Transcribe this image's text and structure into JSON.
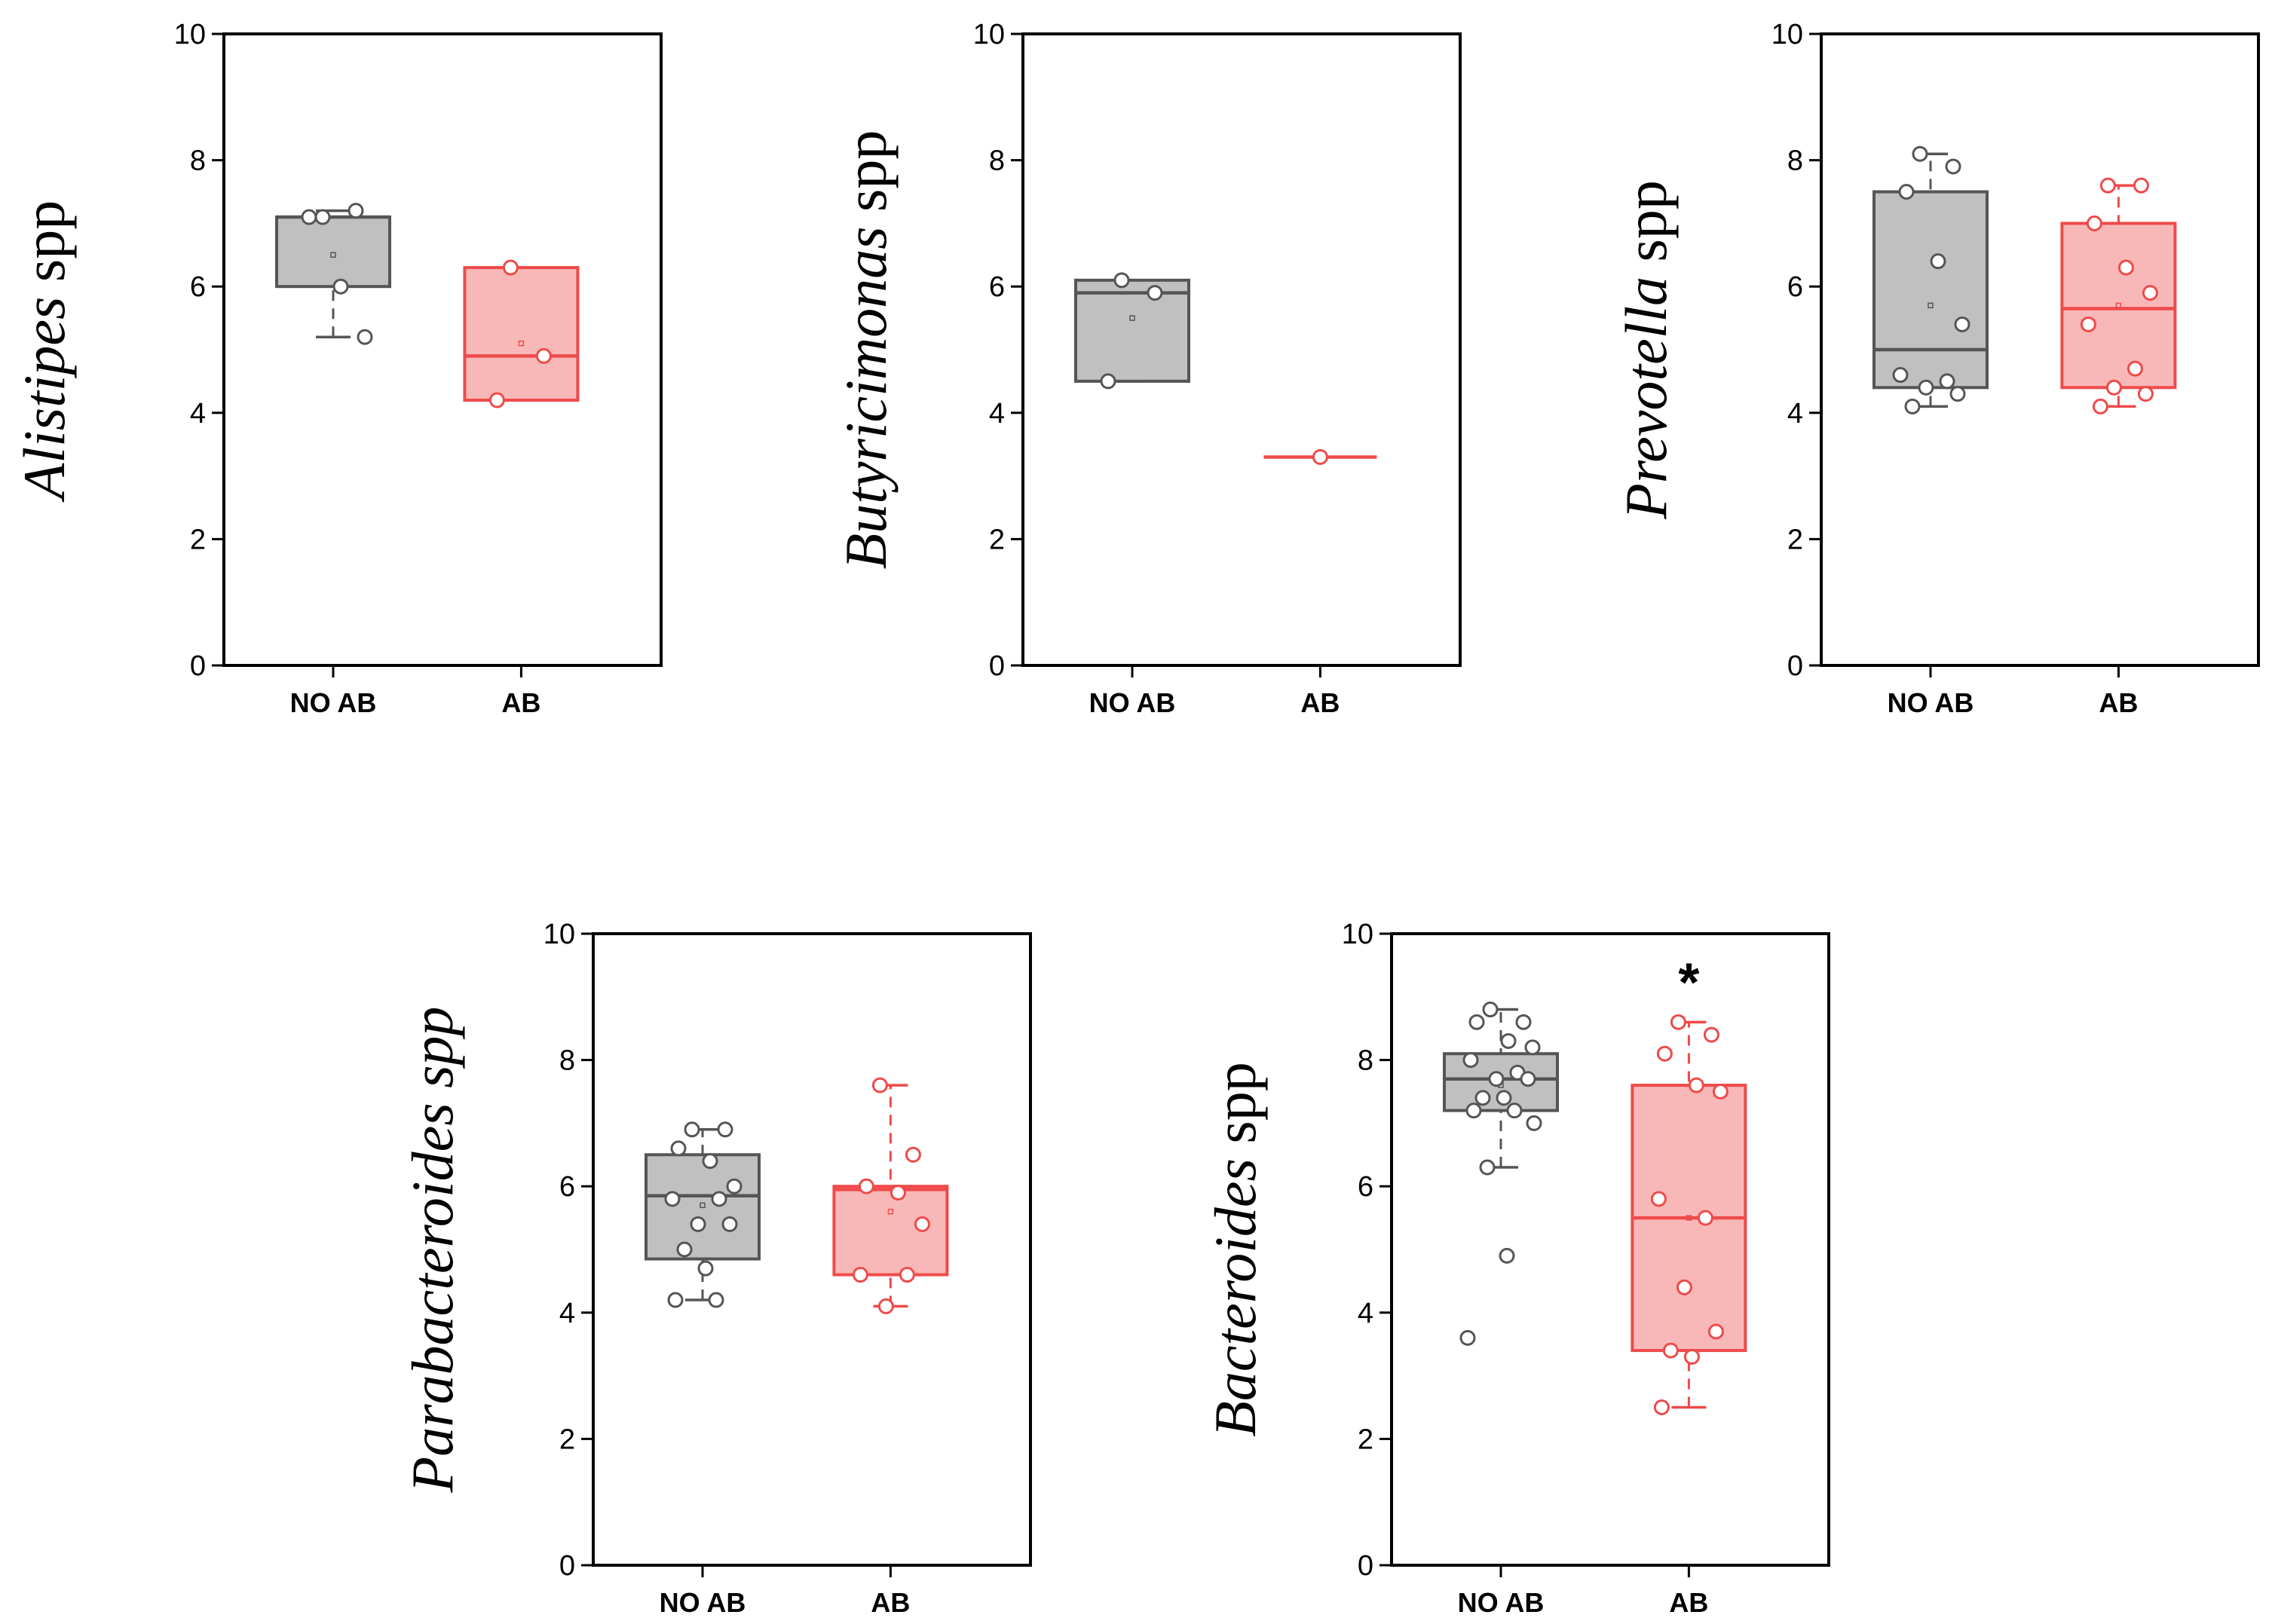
{
  "chart_data": [
    {
      "type": "box",
      "ylabel": {
        "genus": "Alistipes",
        "suffix": " spp"
      },
      "ylim": [
        0,
        10
      ],
      "yticks": [
        0,
        2,
        4,
        6,
        8,
        10
      ],
      "categories": [
        "NO AB",
        "AB"
      ],
      "significance": "",
      "series": [
        {
          "name": "NO AB",
          "color": "#555555",
          "fill": "#c0c0c0",
          "q1": 6.0,
          "median": 7.1,
          "q3": 7.1,
          "mean": 6.5,
          "whisker_low": 5.2,
          "whisker_high": 7.2,
          "points": [
            7.1,
            7.2,
            7.1,
            6.0,
            5.2
          ]
        },
        {
          "name": "AB",
          "color": "#ef4a4a",
          "fill": "#f9b8b8",
          "q1": 4.2,
          "median": 4.9,
          "q3": 6.3,
          "mean": 5.1,
          "whisker_low": 4.2,
          "whisker_high": 6.3,
          "points": [
            6.3,
            4.9,
            4.2
          ]
        }
      ]
    },
    {
      "type": "box",
      "ylabel": {
        "genus": "Butyricimonas",
        "suffix": " spp"
      },
      "ylim": [
        0,
        10
      ],
      "yticks": [
        0,
        2,
        4,
        6,
        8,
        10
      ],
      "categories": [
        "NO AB",
        "AB"
      ],
      "significance": "",
      "series": [
        {
          "name": "NO AB",
          "color": "#555555",
          "fill": "#c0c0c0",
          "q1": 4.5,
          "median": 5.9,
          "q3": 6.1,
          "mean": 5.5,
          "whisker_low": 4.5,
          "whisker_high": 6.1,
          "points": [
            6.1,
            5.9,
            4.5
          ]
        },
        {
          "name": "AB",
          "color": "#ef4a4a",
          "fill": "#f9b8b8",
          "q1": 3.3,
          "median": 3.3,
          "q3": 3.3,
          "mean": 3.3,
          "whisker_low": 3.3,
          "whisker_high": 3.3,
          "points": [
            3.3
          ]
        }
      ]
    },
    {
      "type": "box",
      "ylabel": {
        "genus": "Prevotella",
        "suffix": " spp"
      },
      "ylim": [
        0,
        10
      ],
      "yticks": [
        0,
        2,
        4,
        6,
        8,
        10
      ],
      "categories": [
        "NO AB",
        "AB"
      ],
      "significance": "",
      "series": [
        {
          "name": "NO AB",
          "color": "#555555",
          "fill": "#c0c0c0",
          "q1": 4.4,
          "median": 5.0,
          "q3": 7.5,
          "mean": 5.7,
          "whisker_low": 4.1,
          "whisker_high": 8.1,
          "points": [
            8.1,
            7.9,
            7.5,
            6.4,
            5.4,
            4.6,
            4.5,
            4.4,
            4.3,
            4.1
          ]
        },
        {
          "name": "AB",
          "color": "#ef4a4a",
          "fill": "#f9b8b8",
          "q1": 4.4,
          "median": 5.65,
          "q3": 7.0,
          "mean": 5.7,
          "whisker_low": 4.1,
          "whisker_high": 7.6,
          "points": [
            7.6,
            7.6,
            7.0,
            6.3,
            5.9,
            5.4,
            4.7,
            4.4,
            4.3,
            4.1
          ]
        }
      ]
    },
    {
      "type": "box",
      "ylabel": {
        "genus": "Parabacteroides spp",
        "suffix": ""
      },
      "ylim": [
        0,
        10
      ],
      "yticks": [
        0,
        2,
        4,
        6,
        8,
        10
      ],
      "categories": [
        "NO AB",
        "AB"
      ],
      "significance": "",
      "series": [
        {
          "name": "NO AB",
          "color": "#555555",
          "fill": "#c0c0c0",
          "q1": 4.85,
          "median": 5.85,
          "q3": 6.5,
          "mean": 5.7,
          "whisker_low": 4.2,
          "whisker_high": 6.9,
          "points": [
            6.9,
            6.9,
            6.6,
            6.4,
            6.0,
            5.8,
            5.8,
            5.4,
            5.4,
            5.0,
            4.7,
            4.2,
            4.2
          ]
        },
        {
          "name": "AB",
          "color": "#ef4a4a",
          "fill": "#f9b8b8",
          "q1": 4.6,
          "median": 5.95,
          "q3": 6.0,
          "mean": 5.6,
          "whisker_low": 4.1,
          "whisker_high": 7.6,
          "points": [
            7.6,
            6.5,
            6.0,
            5.9,
            5.4,
            4.6,
            4.6,
            4.1
          ]
        }
      ]
    },
    {
      "type": "box",
      "ylabel": {
        "genus": "Bacteroides",
        "suffix": " spp"
      },
      "ylim": [
        0,
        10
      ],
      "yticks": [
        0,
        2,
        4,
        6,
        8,
        10
      ],
      "categories": [
        "NO AB",
        "AB"
      ],
      "significance": "*",
      "series": [
        {
          "name": "NO AB",
          "color": "#555555",
          "fill": "#c0c0c0",
          "q1": 7.2,
          "median": 7.7,
          "q3": 8.1,
          "mean": 7.6,
          "whisker_low": 6.3,
          "whisker_high": 8.8,
          "points": [
            8.8,
            8.6,
            8.6,
            8.3,
            8.2,
            8.0,
            7.8,
            7.7,
            7.7,
            7.4,
            7.4,
            7.2,
            7.2,
            7.0,
            6.3,
            4.9,
            3.6
          ]
        },
        {
          "name": "AB",
          "color": "#ef4a4a",
          "fill": "#f9b8b8",
          "q1": 3.4,
          "median": 5.5,
          "q3": 7.6,
          "mean": 5.5,
          "whisker_low": 2.5,
          "whisker_high": 8.6,
          "points": [
            8.6,
            8.4,
            8.1,
            7.6,
            7.5,
            5.8,
            5.5,
            4.4,
            3.7,
            3.4,
            3.3,
            2.5
          ]
        }
      ]
    }
  ]
}
